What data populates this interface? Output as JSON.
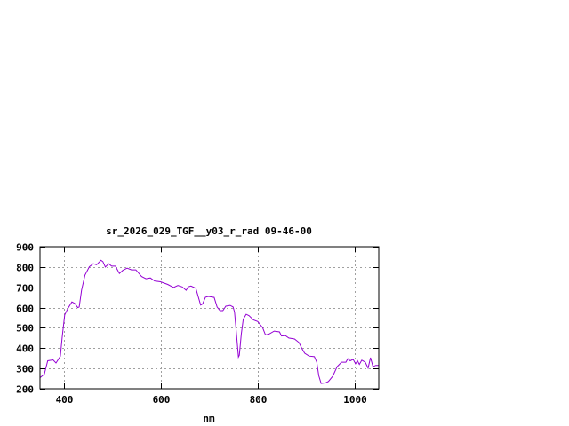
{
  "chart_data": {
    "type": "line",
    "title": "sr_2026_029_TGF__y03_r_rad 09-46-00",
    "xlabel": "nm",
    "ylabel": "",
    "xlim": [
      350,
      1050
    ],
    "ylim": [
      200,
      900
    ],
    "xticks": [
      400,
      600,
      800,
      1000
    ],
    "yticks": [
      200,
      300,
      400,
      500,
      600,
      700,
      800,
      900
    ],
    "grid": true,
    "line_color": "#9400d3",
    "series": [
      {
        "x": [
          350,
          352,
          359,
          366,
          377,
          383,
          392,
          396,
          401,
          407,
          416,
          422,
          428,
          431,
          436,
          443,
          452,
          460,
          467,
          476,
          480,
          485,
          492,
          498,
          506,
          514,
          521,
          530,
          539,
          548,
          560,
          569,
          578,
          587,
          599,
          614,
          626,
          635,
          644,
          652,
          656,
          662,
          672,
          682,
          686,
          692,
          698,
          710,
          716,
          722,
          728,
          734,
          743,
          749,
          752,
          756,
          760,
          762,
          766,
          770,
          776,
          782,
          791,
          800,
          810,
          816,
          823,
          834,
          845,
          849,
          857,
          864,
          876,
          885,
          891,
          897,
          906,
          917,
          922,
          926,
          931,
          940,
          946,
          955,
          964,
          973,
          982,
          986,
          991,
          997,
          1002,
          1006,
          1010,
          1015,
          1022,
          1028,
          1033,
          1038,
          1044,
          1050
        ],
        "y": [
          255,
          258,
          272,
          338,
          342,
          327,
          360,
          455,
          564,
          593,
          628,
          620,
          600,
          603,
          687,
          760,
          801,
          816,
          811,
          833,
          826,
          800,
          816,
          804,
          804,
          768,
          783,
          794,
          786,
          786,
          753,
          742,
          746,
          731,
          727,
          714,
          699,
          709,
          702,
          685,
          702,
          706,
          695,
          612,
          618,
          651,
          655,
          650,
          603,
          585,
          585,
          607,
          611,
          603,
          578,
          469,
          356,
          365,
          469,
          542,
          567,
          560,
          539,
          531,
          501,
          465,
          469,
          484,
          480,
          460,
          462,
          450,
          445,
          428,
          399,
          375,
          361,
          358,
          331,
          265,
          226,
          229,
          236,
          262,
          309,
          331,
          331,
          348,
          338,
          345,
          323,
          338,
          320,
          341,
          331,
          302,
          353,
          309,
          315,
          315
        ]
      }
    ]
  }
}
